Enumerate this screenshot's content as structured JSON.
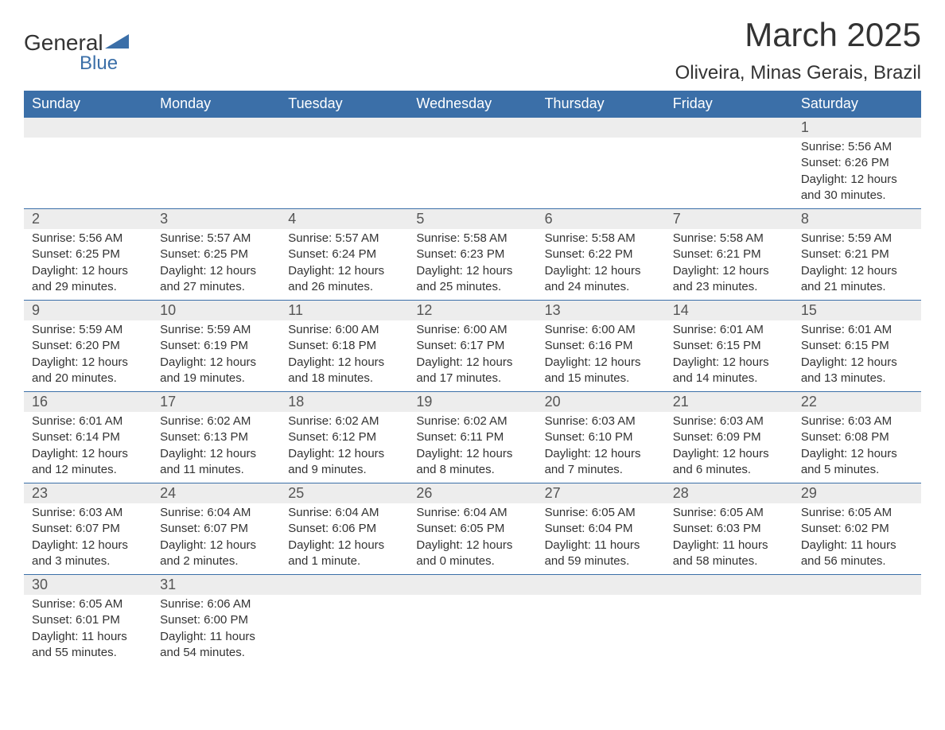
{
  "brand": {
    "name": "General",
    "sub": "Blue",
    "accent_color": "#3b6fa8"
  },
  "title": "March 2025",
  "location": "Oliveira, Minas Gerais, Brazil",
  "colors": {
    "header_bg": "#3b6fa8",
    "header_text": "#ffffff",
    "daynum_bg": "#ededed",
    "text": "#333333",
    "border": "#3b6fa8"
  },
  "weekdays": [
    "Sunday",
    "Monday",
    "Tuesday",
    "Wednesday",
    "Thursday",
    "Friday",
    "Saturday"
  ],
  "weeks": [
    [
      null,
      null,
      null,
      null,
      null,
      null,
      {
        "n": "1",
        "sr": "5:56 AM",
        "ss": "6:26 PM",
        "dl": "12 hours and 30 minutes."
      }
    ],
    [
      {
        "n": "2",
        "sr": "5:56 AM",
        "ss": "6:25 PM",
        "dl": "12 hours and 29 minutes."
      },
      {
        "n": "3",
        "sr": "5:57 AM",
        "ss": "6:25 PM",
        "dl": "12 hours and 27 minutes."
      },
      {
        "n": "4",
        "sr": "5:57 AM",
        "ss": "6:24 PM",
        "dl": "12 hours and 26 minutes."
      },
      {
        "n": "5",
        "sr": "5:58 AM",
        "ss": "6:23 PM",
        "dl": "12 hours and 25 minutes."
      },
      {
        "n": "6",
        "sr": "5:58 AM",
        "ss": "6:22 PM",
        "dl": "12 hours and 24 minutes."
      },
      {
        "n": "7",
        "sr": "5:58 AM",
        "ss": "6:21 PM",
        "dl": "12 hours and 23 minutes."
      },
      {
        "n": "8",
        "sr": "5:59 AM",
        "ss": "6:21 PM",
        "dl": "12 hours and 21 minutes."
      }
    ],
    [
      {
        "n": "9",
        "sr": "5:59 AM",
        "ss": "6:20 PM",
        "dl": "12 hours and 20 minutes."
      },
      {
        "n": "10",
        "sr": "5:59 AM",
        "ss": "6:19 PM",
        "dl": "12 hours and 19 minutes."
      },
      {
        "n": "11",
        "sr": "6:00 AM",
        "ss": "6:18 PM",
        "dl": "12 hours and 18 minutes."
      },
      {
        "n": "12",
        "sr": "6:00 AM",
        "ss": "6:17 PM",
        "dl": "12 hours and 17 minutes."
      },
      {
        "n": "13",
        "sr": "6:00 AM",
        "ss": "6:16 PM",
        "dl": "12 hours and 15 minutes."
      },
      {
        "n": "14",
        "sr": "6:01 AM",
        "ss": "6:15 PM",
        "dl": "12 hours and 14 minutes."
      },
      {
        "n": "15",
        "sr": "6:01 AM",
        "ss": "6:15 PM",
        "dl": "12 hours and 13 minutes."
      }
    ],
    [
      {
        "n": "16",
        "sr": "6:01 AM",
        "ss": "6:14 PM",
        "dl": "12 hours and 12 minutes."
      },
      {
        "n": "17",
        "sr": "6:02 AM",
        "ss": "6:13 PM",
        "dl": "12 hours and 11 minutes."
      },
      {
        "n": "18",
        "sr": "6:02 AM",
        "ss": "6:12 PM",
        "dl": "12 hours and 9 minutes."
      },
      {
        "n": "19",
        "sr": "6:02 AM",
        "ss": "6:11 PM",
        "dl": "12 hours and 8 minutes."
      },
      {
        "n": "20",
        "sr": "6:03 AM",
        "ss": "6:10 PM",
        "dl": "12 hours and 7 minutes."
      },
      {
        "n": "21",
        "sr": "6:03 AM",
        "ss": "6:09 PM",
        "dl": "12 hours and 6 minutes."
      },
      {
        "n": "22",
        "sr": "6:03 AM",
        "ss": "6:08 PM",
        "dl": "12 hours and 5 minutes."
      }
    ],
    [
      {
        "n": "23",
        "sr": "6:03 AM",
        "ss": "6:07 PM",
        "dl": "12 hours and 3 minutes."
      },
      {
        "n": "24",
        "sr": "6:04 AM",
        "ss": "6:07 PM",
        "dl": "12 hours and 2 minutes."
      },
      {
        "n": "25",
        "sr": "6:04 AM",
        "ss": "6:06 PM",
        "dl": "12 hours and 1 minute."
      },
      {
        "n": "26",
        "sr": "6:04 AM",
        "ss": "6:05 PM",
        "dl": "12 hours and 0 minutes."
      },
      {
        "n": "27",
        "sr": "6:05 AM",
        "ss": "6:04 PM",
        "dl": "11 hours and 59 minutes."
      },
      {
        "n": "28",
        "sr": "6:05 AM",
        "ss": "6:03 PM",
        "dl": "11 hours and 58 minutes."
      },
      {
        "n": "29",
        "sr": "6:05 AM",
        "ss": "6:02 PM",
        "dl": "11 hours and 56 minutes."
      }
    ],
    [
      {
        "n": "30",
        "sr": "6:05 AM",
        "ss": "6:01 PM",
        "dl": "11 hours and 55 minutes."
      },
      {
        "n": "31",
        "sr": "6:06 AM",
        "ss": "6:00 PM",
        "dl": "11 hours and 54 minutes."
      },
      null,
      null,
      null,
      null,
      null
    ]
  ],
  "labels": {
    "sunrise": "Sunrise: ",
    "sunset": "Sunset: ",
    "daylight": "Daylight: "
  }
}
